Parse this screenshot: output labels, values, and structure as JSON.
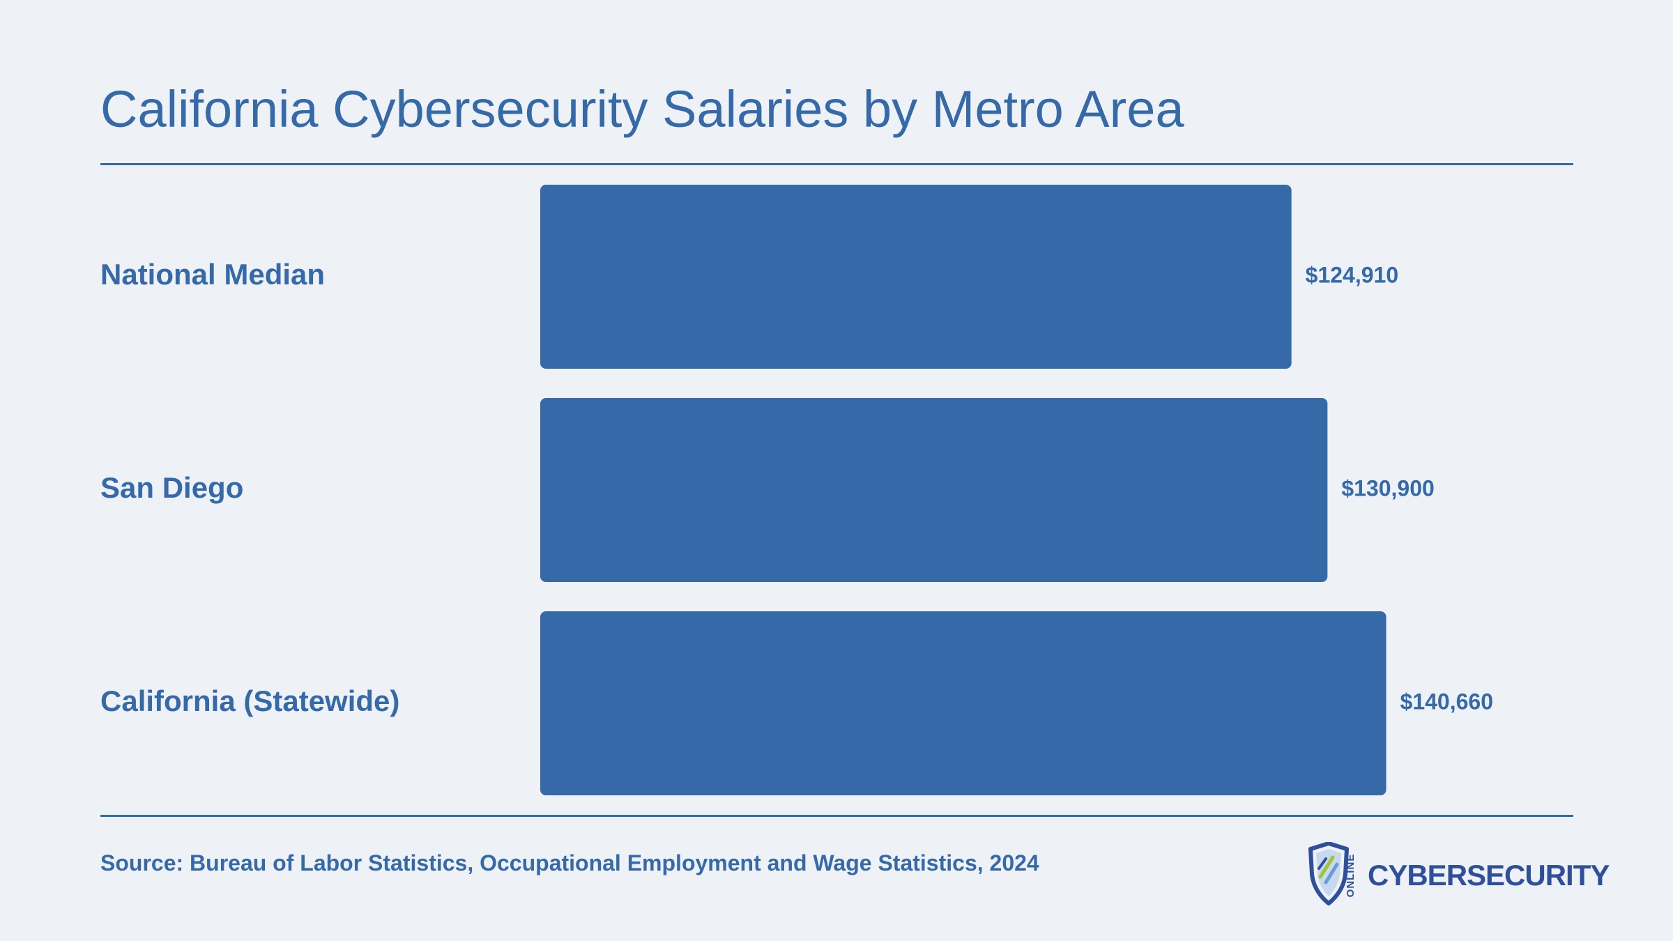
{
  "title": "California Cybersecurity Salaries by Metro Area",
  "source": "Source: Bureau of Labor Statistics, Occupational Employment and Wage Statistics, 2024",
  "logo": {
    "small_text": "ONLINE",
    "word": "CYBERSECURITY",
    "icon": "shield-icon"
  },
  "colors": {
    "background": "#eef2f7",
    "bar": "#3569a8",
    "text": "#3569a8",
    "logo": "#2f4f9a"
  },
  "chart_data": {
    "type": "bar",
    "orientation": "horizontal",
    "title": "California Cybersecurity Salaries by Metro Area",
    "categories": [
      "National Median",
      "San Diego",
      "California (Statewide)"
    ],
    "values": [
      124910,
      130900,
      140660
    ],
    "value_labels": [
      "$124,910",
      "$130,900",
      "$140,660"
    ],
    "xlabel": "",
    "ylabel": "",
    "xlim": [
      0,
      153000
    ],
    "grid": false,
    "legend": "none"
  }
}
